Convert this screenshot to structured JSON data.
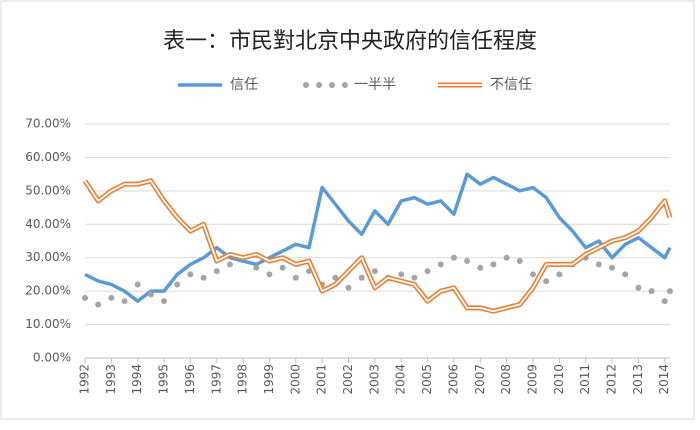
{
  "chart_data": {
    "type": "line",
    "title": "表一：市民對北京中央政府的信任程度",
    "x": [
      1992,
      1992.5,
      1993,
      1993.5,
      1994,
      1994.5,
      1995,
      1995.5,
      1996,
      1996.5,
      1997,
      1997.5,
      1998,
      1998.5,
      1999,
      1999.5,
      2000,
      2000.5,
      2001,
      2001.5,
      2002,
      2002.5,
      2003,
      2003.5,
      2004,
      2004.5,
      2005,
      2005.5,
      2006,
      2006.5,
      2007,
      2007.5,
      2008,
      2008.5,
      2009,
      2009.5,
      2010,
      2010.5,
      2011,
      2011.5,
      2012,
      2012.5,
      2013,
      2013.5,
      2014,
      2014.2
    ],
    "series": [
      {
        "name": "信任",
        "color": "#5b9bd5",
        "style": "line",
        "values": [
          25,
          23,
          22,
          20,
          17,
          20,
          20,
          25,
          28,
          30,
          33,
          30,
          29,
          28,
          30,
          32,
          34,
          33,
          51,
          46,
          41,
          37,
          44,
          40,
          47,
          48,
          46,
          47,
          43,
          55,
          52,
          54,
          52,
          50,
          51,
          48,
          42,
          38,
          33,
          35,
          30,
          34,
          36,
          33,
          30,
          33
        ]
      },
      {
        "name": "一半半",
        "color": "#a5a5a5",
        "style": "dots",
        "values": [
          18,
          16,
          18,
          17,
          22,
          19,
          17,
          22,
          25,
          24,
          26,
          28,
          30,
          27,
          25,
          27,
          24,
          26,
          22,
          24,
          21,
          24,
          26,
          24,
          25,
          24,
          26,
          28,
          30,
          29,
          27,
          28,
          30,
          29,
          25,
          23,
          25,
          28,
          30,
          28,
          27,
          25,
          21,
          20,
          17,
          20
        ]
      },
      {
        "name": "不信任",
        "color": "#ed7d31",
        "style": "double",
        "values": [
          53,
          47,
          50,
          52,
          52,
          53,
          47,
          42,
          38,
          40,
          29,
          31,
          30,
          31,
          29,
          30,
          28,
          29,
          20,
          22,
          26,
          30,
          21,
          24,
          23,
          22,
          17,
          20,
          21,
          15,
          15,
          14,
          15,
          16,
          21,
          28,
          28,
          28,
          31,
          33,
          35,
          36,
          38,
          42,
          47,
          42
        ]
      }
    ],
    "xlim": [
      1992,
      2014.2
    ],
    "xticks": [
      1992,
      1993,
      1994,
      1995,
      1996,
      1997,
      1998,
      1999,
      2000,
      2001,
      2002,
      2003,
      2004,
      2005,
      2006,
      2007,
      2008,
      2009,
      2010,
      2011,
      2012,
      2013,
      2014
    ],
    "ylim": [
      0,
      70
    ],
    "yticks": [
      {
        "value": 0,
        "label": "0.00%"
      },
      {
        "value": 10,
        "label": "10.00%"
      },
      {
        "value": 20,
        "label": "20.00%"
      },
      {
        "value": 30,
        "label": "30.00%"
      },
      {
        "value": 40,
        "label": "40.00%"
      },
      {
        "value": 50,
        "label": "50.00%"
      },
      {
        "value": 60,
        "label": "60.00%"
      },
      {
        "value": 70,
        "label": "70.00%"
      }
    ],
    "grid": true,
    "legend": "top"
  }
}
